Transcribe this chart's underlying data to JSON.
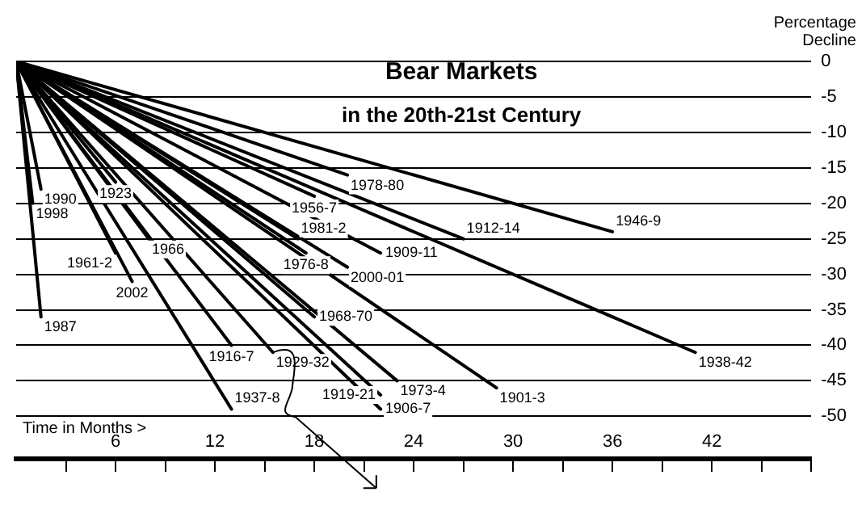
{
  "chart_data": {
    "type": "line",
    "title": "Bear Markets",
    "subtitle": "in the 20th-21st Century",
    "ylabel": "Percentage Decline",
    "annotations": [
      "Time in Months >"
    ],
    "xlim": [
      0,
      48
    ],
    "ylim": [
      -56,
      0
    ],
    "xticks": [
      {
        "value": 3,
        "label": null
      },
      6,
      {
        "value": 9,
        "label": null
      },
      12,
      {
        "value": 15,
        "label": null
      },
      18,
      {
        "value": 21,
        "label": null
      },
      24,
      {
        "value": 27,
        "label": null
      },
      30,
      {
        "value": 33,
        "label": null
      },
      36,
      {
        "value": 39,
        "label": null
      },
      42,
      {
        "value": 45,
        "label": null
      },
      {
        "value": 48,
        "label": null
      }
    ],
    "yticks": [
      0,
      -5,
      -10,
      -15,
      -20,
      -25,
      -30,
      -35,
      -40,
      -45,
      -50
    ],
    "grid": "y",
    "legend": false,
    "marker": "none",
    "line_style": "solid",
    "series": [
      {
        "name": "1990",
        "color": "#000000",
        "x": [
          0,
          1.5
        ],
        "values": [
          0,
          -18
        ]
      },
      {
        "name": "1998",
        "color": "#000000",
        "x": [
          0,
          1
        ],
        "values": [
          0,
          -20
        ]
      },
      {
        "name": "1923",
        "color": "#000000",
        "x": [
          0,
          6
        ],
        "values": [
          0,
          -17
        ]
      },
      {
        "name": "1978-80",
        "color": "#000000",
        "x": [
          0,
          20
        ],
        "values": [
          0,
          -16
        ]
      },
      {
        "name": "1956-7",
        "color": "#000000",
        "x": [
          0,
          18
        ],
        "values": [
          0,
          -19
        ]
      },
      {
        "name": "1946-9",
        "color": "#000000",
        "x": [
          0,
          36
        ],
        "values": [
          0,
          -24
        ]
      },
      {
        "name": "1912-14",
        "color": "#000000",
        "x": [
          0,
          27
        ],
        "values": [
          0,
          -25
        ]
      },
      {
        "name": "1981-2",
        "color": "#000000",
        "x": [
          0,
          17
        ],
        "values": [
          0,
          -25
        ]
      },
      {
        "name": "1976-8",
        "color": "#000000",
        "x": [
          0,
          17.5
        ],
        "values": [
          0,
          -27
        ]
      },
      {
        "name": "1909-11",
        "color": "#000000",
        "x": [
          0,
          22
        ],
        "values": [
          0,
          -27
        ]
      },
      {
        "name": "2000-01",
        "color": "#000000",
        "x": [
          0,
          20
        ],
        "values": [
          0,
          -29
        ]
      },
      {
        "name": "1961-2",
        "color": "#000000",
        "x": [
          0,
          6
        ],
        "values": [
          0,
          -27
        ]
      },
      {
        "name": "1966",
        "color": "#000000",
        "x": [
          0,
          8
        ],
        "values": [
          0,
          -25
        ]
      },
      {
        "name": "2002",
        "color": "#000000",
        "x": [
          0,
          7
        ],
        "values": [
          0,
          -31
        ]
      },
      {
        "name": "1987",
        "color": "#000000",
        "x": [
          0,
          1.5
        ],
        "values": [
          0,
          -36
        ]
      },
      {
        "name": "1968-70",
        "color": "#000000",
        "x": [
          0,
          18
        ],
        "values": [
          0,
          -36
        ]
      },
      {
        "name": "1916-7",
        "color": "#000000",
        "x": [
          0,
          13
        ],
        "values": [
          0,
          -40
        ]
      },
      {
        "name": "1938-42",
        "color": "#000000",
        "x": [
          0,
          41
        ],
        "values": [
          0,
          -41
        ]
      },
      {
        "name": "1973-4",
        "color": "#000000",
        "x": [
          0,
          23
        ],
        "values": [
          0,
          -45
        ]
      },
      {
        "name": "1901-3",
        "color": "#000000",
        "x": [
          0,
          29
        ],
        "values": [
          0,
          -46
        ]
      },
      {
        "name": "1919-21",
        "color": "#000000",
        "x": [
          0,
          22
        ],
        "values": [
          0,
          -47
        ]
      },
      {
        "name": "1906-7",
        "color": "#000000",
        "x": [
          0,
          22
        ],
        "values": [
          0,
          -49
        ]
      },
      {
        "name": "1937-8",
        "color": "#000000",
        "x": [
          0,
          13
        ],
        "values": [
          0,
          -49
        ]
      },
      {
        "name": "1929-32",
        "color": "#000000",
        "x": [
          0,
          15.5
        ],
        "values": [
          0,
          -41
        ]
      }
    ]
  }
}
